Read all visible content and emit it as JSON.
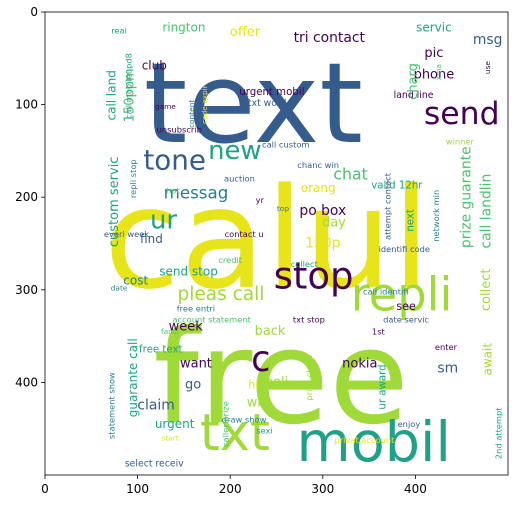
{
  "axes": {
    "x_ticks": [
      "0",
      "100",
      "200",
      "300",
      "400"
    ],
    "y_ticks": [
      "0",
      "100",
      "200",
      "300",
      "400"
    ],
    "x_range": [
      0,
      500
    ],
    "y_range": [
      0,
      500
    ],
    "y_inverted": true
  },
  "colors": {
    "yellow": "#e7e419",
    "lime": "#a0da39",
    "green": "#4ac16d",
    "teal": "#1fa187",
    "cyan": "#277f8e",
    "blue": "#365c8d",
    "purple": "#46327e",
    "dark": "#440154"
  },
  "words": [
    {
      "t": "calul",
      "x": 240,
      "y": 245,
      "s": 150,
      "c": "yellow",
      "r": 0
    },
    {
      "t": "free",
      "x": 255,
      "y": 395,
      "s": 140,
      "c": "lime",
      "r": 0
    },
    {
      "t": "text",
      "x": 225,
      "y": 100,
      "s": 120,
      "c": "blue",
      "r": 0
    },
    {
      "t": "mobil",
      "x": 355,
      "y": 465,
      "s": 60,
      "c": "teal",
      "r": 0
    },
    {
      "t": "txt",
      "x": 205,
      "y": 455,
      "s": 55,
      "c": "lime",
      "r": 0
    },
    {
      "t": "repli",
      "x": 385,
      "y": 305,
      "s": 50,
      "c": "lime",
      "r": 0
    },
    {
      "t": "stop",
      "x": 290,
      "y": 285,
      "s": 40,
      "c": "dark",
      "r": 0
    },
    {
      "t": "send",
      "x": 450,
      "y": 110,
      "s": 34,
      "c": "dark",
      "r": 0
    },
    {
      "t": "tone",
      "x": 140,
      "y": 160,
      "s": 30,
      "c": "blue",
      "r": 0
    },
    {
      "t": "new",
      "x": 205,
      "y": 150,
      "s": 28,
      "c": "teal",
      "r": 0
    },
    {
      "t": "ur",
      "x": 128,
      "y": 225,
      "s": 28,
      "c": "teal",
      "r": 0
    },
    {
      "t": "c",
      "x": 233,
      "y": 375,
      "s": 38,
      "c": "dark",
      "r": 0
    },
    {
      "t": "pleas call",
      "x": 190,
      "y": 305,
      "s": 20,
      "c": "lime",
      "r": 0
    },
    {
      "t": "messag",
      "x": 163,
      "y": 195,
      "s": 18,
      "c": "cyan",
      "r": 0
    },
    {
      "t": "chat",
      "x": 330,
      "y": 175,
      "s": 17,
      "c": "green",
      "r": 0
    },
    {
      "t": "po box",
      "x": 300,
      "y": 215,
      "s": 15,
      "c": "dark",
      "r": 0
    },
    {
      "t": "150p",
      "x": 300,
      "y": 250,
      "s": 15,
      "c": "yellow",
      "r": 0
    },
    {
      "t": "tri contact",
      "x": 307,
      "y": 28,
      "s": 15,
      "c": "dark",
      "r": 0
    },
    {
      "t": "msg",
      "x": 478,
      "y": 30,
      "s": 15,
      "c": "blue",
      "r": 0
    },
    {
      "t": "claim",
      "x": 120,
      "y": 425,
      "s": 15,
      "c": "blue",
      "r": 0
    },
    {
      "t": "urgent",
      "x": 140,
      "y": 445,
      "s": 13,
      "c": "teal",
      "r": 0
    },
    {
      "t": "week",
      "x": 152,
      "y": 340,
      "s": 14,
      "c": "dark",
      "r": 0
    },
    {
      "t": "want",
      "x": 163,
      "y": 380,
      "s": 14,
      "c": "dark",
      "r": 0
    },
    {
      "t": "go",
      "x": 160,
      "y": 403,
      "s": 14,
      "c": "blue",
      "r": 0
    },
    {
      "t": "back",
      "x": 243,
      "y": 345,
      "s": 14,
      "c": "lime",
      "r": 0
    },
    {
      "t": "poli",
      "x": 250,
      "y": 400,
      "s": 14,
      "c": "lime",
      "r": 0
    },
    {
      "t": "hi",
      "x": 225,
      "y": 403,
      "s": 12,
      "c": "yellow",
      "r": 0
    },
    {
      "t": "win",
      "x": 230,
      "y": 422,
      "s": 14,
      "c": "lime",
      "r": 0
    },
    {
      "t": "nokia",
      "x": 340,
      "y": 380,
      "s": 14,
      "c": "dark",
      "r": 0
    },
    {
      "t": "sm",
      "x": 435,
      "y": 385,
      "s": 15,
      "c": "blue",
      "r": 0
    },
    {
      "t": "day",
      "x": 312,
      "y": 228,
      "s": 14,
      "c": "lime",
      "r": 0
    },
    {
      "t": "orang",
      "x": 295,
      "y": 190,
      "s": 13,
      "c": "yellow",
      "r": 0
    },
    {
      "t": "phone",
      "x": 420,
      "y": 68,
      "s": 14,
      "c": "dark",
      "r": 0
    },
    {
      "t": "pic",
      "x": 420,
      "y": 45,
      "s": 14,
      "c": "dark",
      "r": 0
    },
    {
      "t": "servic",
      "x": 420,
      "y": 17,
      "s": 13,
      "c": "teal",
      "r": 0
    },
    {
      "t": "offer",
      "x": 216,
      "y": 22,
      "s": 14,
      "c": "yellow",
      "r": 0
    },
    {
      "t": "rington",
      "x": 150,
      "y": 17,
      "s": 13,
      "c": "green",
      "r": 0
    },
    {
      "t": "club",
      "x": 118,
      "y": 58,
      "s": 13,
      "c": "dark",
      "r": 0
    },
    {
      "t": "find",
      "x": 115,
      "y": 245,
      "s": 13,
      "c": "blue",
      "r": 0
    },
    {
      "t": "send stop",
      "x": 155,
      "y": 280,
      "s": 13,
      "c": "teal",
      "r": 0
    },
    {
      "t": "cost",
      "x": 98,
      "y": 290,
      "s": 13,
      "c": "cyan",
      "r": 0
    },
    {
      "t": "see",
      "x": 390,
      "y": 318,
      "s": 12,
      "c": "dark",
      "r": 0
    },
    {
      "t": "free text",
      "x": 125,
      "y": 365,
      "s": 11,
      "c": "teal",
      "r": 0
    },
    {
      "t": "urgent mobil",
      "x": 245,
      "y": 87,
      "s": 11,
      "c": "dark",
      "r": 0
    },
    {
      "t": "txt word",
      "x": 240,
      "y": 99,
      "s": 10,
      "c": "blue",
      "r": 0
    },
    {
      "t": "call custom",
      "x": 260,
      "y": 143,
      "s": 9,
      "c": "blue",
      "r": 0
    },
    {
      "t": "chanc win",
      "x": 295,
      "y": 165,
      "s": 9,
      "c": "blue",
      "r": 0
    },
    {
      "t": "valid 12hr",
      "x": 380,
      "y": 188,
      "s": 11,
      "c": "teal",
      "r": 0
    },
    {
      "t": "unsubscrib",
      "x": 145,
      "y": 127,
      "s": 9,
      "c": "dark",
      "r": 0
    },
    {
      "t": "auction",
      "x": 210,
      "y": 180,
      "s": 9,
      "c": "blue",
      "r": 0
    },
    {
      "t": "hot",
      "x": 138,
      "y": 193,
      "s": 9,
      "c": "green",
      "r": 0
    },
    {
      "t": "yr",
      "x": 232,
      "y": 203,
      "s": 9,
      "c": "dark",
      "r": 0
    },
    {
      "t": "top",
      "x": 257,
      "y": 212,
      "s": 8,
      "c": "cyan",
      "r": 0
    },
    {
      "t": "contact u",
      "x": 215,
      "y": 240,
      "s": 9,
      "c": "dark",
      "r": 0
    },
    {
      "t": "everi week",
      "x": 88,
      "y": 240,
      "s": 9,
      "c": "blue",
      "r": 0
    },
    {
      "t": "credit",
      "x": 200,
      "y": 268,
      "s": 9,
      "c": "green",
      "r": 0
    },
    {
      "t": "collect",
      "x": 280,
      "y": 272,
      "s": 9,
      "c": "teal",
      "r": 0
    },
    {
      "t": "identifi code",
      "x": 388,
      "y": 256,
      "s": 9,
      "c": "blue",
      "r": 0
    },
    {
      "t": "call identifi",
      "x": 368,
      "y": 302,
      "s": 9,
      "c": "cyan",
      "r": 0
    },
    {
      "t": "date",
      "x": 80,
      "y": 298,
      "s": 8,
      "c": "cyan",
      "r": 0
    },
    {
      "t": "free entri",
      "x": 163,
      "y": 320,
      "s": 9,
      "c": "cyan",
      "r": 0
    },
    {
      "t": "account statement",
      "x": 180,
      "y": 332,
      "s": 9,
      "c": "green",
      "r": 0
    },
    {
      "t": "txt stop",
      "x": 285,
      "y": 332,
      "s": 9,
      "c": "dark",
      "r": 0
    },
    {
      "t": "fanci",
      "x": 135,
      "y": 345,
      "s": 8,
      "c": "green",
      "r": 0
    },
    {
      "t": "date servic",
      "x": 390,
      "y": 332,
      "s": 9,
      "c": "blue",
      "r": 0
    },
    {
      "t": "1st",
      "x": 360,
      "y": 345,
      "s": 9,
      "c": "dark",
      "r": 0
    },
    {
      "t": "enter",
      "x": 433,
      "y": 362,
      "s": 9,
      "c": "dark",
      "r": 0
    },
    {
      "t": "draw show",
      "x": 215,
      "y": 440,
      "s": 9,
      "c": "cyan",
      "r": 0
    },
    {
      "t": "sexi",
      "x": 237,
      "y": 452,
      "s": 9,
      "c": "teal",
      "r": 0
    },
    {
      "t": "enjoy",
      "x": 393,
      "y": 445,
      "s": 9,
      "c": "blue",
      "r": 0
    },
    {
      "t": "privat account",
      "x": 345,
      "y": 462,
      "s": 9,
      "c": "yellow",
      "r": 0
    },
    {
      "t": "start",
      "x": 135,
      "y": 460,
      "s": 8,
      "c": "yellow",
      "r": 0
    },
    {
      "t": "select receiv",
      "x": 118,
      "y": 488,
      "s": 10,
      "c": "blue",
      "r": 0
    },
    {
      "t": "real",
      "x": 80,
      "y": 20,
      "s": 9,
      "c": "teal",
      "r": 0
    },
    {
      "t": "game",
      "x": 130,
      "y": 102,
      "s": 8,
      "c": "dark",
      "r": 0
    },
    {
      "t": "winner",
      "x": 448,
      "y": 140,
      "s": 9,
      "c": "lime",
      "r": 0
    },
    {
      "t": "land line",
      "x": 398,
      "y": 90,
      "s": 10,
      "c": "dark",
      "r": 0
    },
    {
      "t": "custom servic",
      "x": 75,
      "y": 205,
      "s": 14,
      "c": "teal",
      "r": -90
    },
    {
      "t": "call land",
      "x": 72,
      "y": 90,
      "s": 13,
      "c": "teal",
      "r": -90
    },
    {
      "t": "150ppm",
      "x": 92,
      "y": 90,
      "s": 14,
      "c": "green",
      "r": -90
    },
    {
      "t": "call mobileupd8",
      "x": 90,
      "y": 80,
      "s": 9,
      "c": "teal",
      "r": -90
    },
    {
      "t": "repli stop",
      "x": 95,
      "y": 180,
      "s": 9,
      "c": "cyan",
      "r": -90
    },
    {
      "t": "content",
      "x": 158,
      "y": 110,
      "s": 8,
      "c": "cyan",
      "r": -90
    },
    {
      "t": "code expir",
      "x": 172,
      "y": 100,
      "s": 8,
      "c": "yellow",
      "r": -90
    },
    {
      "t": "charg",
      "x": 398,
      "y": 75,
      "s": 14,
      "c": "green",
      "r": -90
    },
    {
      "t": "prize guarante",
      "x": 455,
      "y": 200,
      "s": 15,
      "c": "green",
      "r": -90
    },
    {
      "t": "call landlin",
      "x": 477,
      "y": 215,
      "s": 15,
      "c": "green",
      "r": -90
    },
    {
      "t": "collect",
      "x": 477,
      "y": 300,
      "s": 14,
      "c": "lime",
      "r": -90
    },
    {
      "t": "await",
      "x": 478,
      "y": 375,
      "s": 13,
      "c": "lime",
      "r": -90
    },
    {
      "t": "attempt contact",
      "x": 370,
      "y": 210,
      "s": 9,
      "c": "blue",
      "r": -90
    },
    {
      "t": "network min",
      "x": 422,
      "y": 220,
      "s": 9,
      "c": "cyan",
      "r": -90
    },
    {
      "t": "next",
      "x": 395,
      "y": 225,
      "s": 11,
      "c": "teal",
      "r": -90
    },
    {
      "t": "xma",
      "x": 425,
      "y": 65,
      "s": 8,
      "c": "green",
      "r": -90
    },
    {
      "t": "use",
      "x": 478,
      "y": 60,
      "s": 8,
      "c": "dark",
      "r": -90
    },
    {
      "t": "guarante call",
      "x": 95,
      "y": 395,
      "s": 13,
      "c": "teal",
      "r": -90
    },
    {
      "t": "statement show",
      "x": 72,
      "y": 425,
      "s": 9,
      "c": "cyan",
      "r": -90
    },
    {
      "t": "caller prize",
      "x": 195,
      "y": 445,
      "s": 9,
      "c": "green",
      "r": -90
    },
    {
      "t": "prize claim",
      "x": 285,
      "y": 395,
      "s": 9,
      "c": "lime",
      "r": -90
    },
    {
      "t": "ur award",
      "x": 365,
      "y": 405,
      "s": 11,
      "c": "teal",
      "r": -90
    },
    {
      "t": "2nd attempt",
      "x": 490,
      "y": 455,
      "s": 9,
      "c": "teal",
      "r": -90
    }
  ]
}
